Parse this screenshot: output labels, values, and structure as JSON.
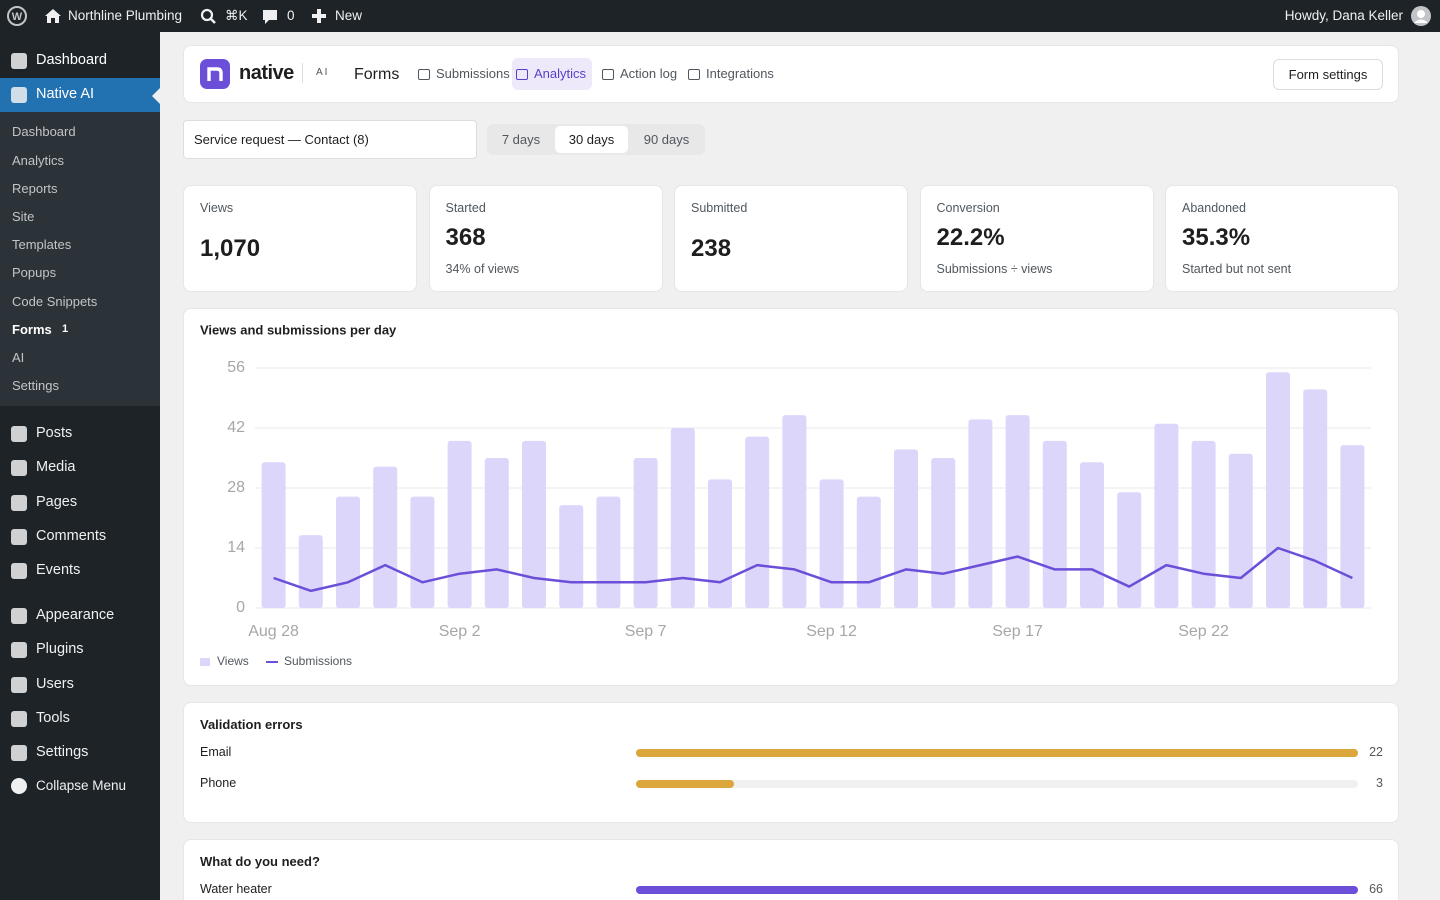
{
  "admin_bar": {
    "site_name": "Northline Plumbing",
    "search_shortcut": "⌘K",
    "comment_count": "0",
    "new": "New",
    "greeting": "Howdy, Dana Keller"
  },
  "sidebar": {
    "top": [
      "Dashboard",
      "Native AI"
    ],
    "top_current": 1,
    "submenu": [
      "Dashboard",
      "Analytics",
      "Reports",
      "Site",
      "Templates",
      "Popups",
      "Code Snippets",
      "Forms",
      "AI",
      "Settings"
    ],
    "submenu_current": 7,
    "submenu_badge": "1",
    "menu": [
      "Posts",
      "Media",
      "Pages",
      "Comments",
      "Events",
      "Appearance",
      "Plugins",
      "Users",
      "Tools",
      "Settings"
    ],
    "collapse": "Collapse Menu"
  },
  "header": {
    "brand": "native",
    "brand_tag": "AI",
    "section": "Forms",
    "tabs": [
      "Submissions",
      "Analytics",
      "Action log",
      "Integrations"
    ],
    "active_tab": 1,
    "button": "Form settings"
  },
  "filters": {
    "form": "Service request — Contact (8)",
    "ranges": [
      "7 days",
      "30 days",
      "90 days"
    ],
    "active_range": 1
  },
  "stats": [
    {
      "label": "Views",
      "value": "1,070"
    },
    {
      "label": "Started",
      "value": "368",
      "note": "34% of views"
    },
    {
      "label": "Submitted",
      "value": "238"
    },
    {
      "label": "Conversion",
      "value": "22.2%",
      "note": "Submissions ÷ views"
    },
    {
      "label": "Abandoned",
      "value": "35.3%",
      "note": "Started but not sent"
    }
  ],
  "chart_data": [
    {
      "type": "combo",
      "title": "Views and submissions per day",
      "categories": [
        "Aug 28",
        null,
        null,
        null,
        null,
        "Sep 2",
        null,
        null,
        null,
        null,
        "Sep 7",
        null,
        null,
        null,
        null,
        "Sep 12",
        null,
        null,
        null,
        null,
        "Sep 17",
        null,
        null,
        null,
        null,
        "Sep 22",
        null,
        null,
        null,
        null
      ],
      "series": [
        {
          "name": "Views",
          "type": "bar",
          "color": "#ddd6fb",
          "values": [
            34,
            17,
            26,
            33,
            26,
            39,
            35,
            39,
            24,
            26,
            35,
            42,
            30,
            40,
            45,
            30,
            26,
            37,
            35,
            44,
            45,
            39,
            34,
            27,
            43,
            39,
            36,
            55,
            51,
            38
          ]
        },
        {
          "name": "Submissions",
          "type": "line",
          "color": "#6b4fd8",
          "values": [
            7,
            4,
            6,
            10,
            6,
            8,
            9,
            7,
            6,
            6,
            6,
            7,
            6,
            10,
            9,
            6,
            6,
            9,
            8,
            10,
            12,
            9,
            9,
            5,
            10,
            8,
            7,
            14,
            11,
            7
          ]
        }
      ],
      "ylim": [
        0,
        56
      ],
      "yticks": [
        0,
        14,
        28,
        42,
        56
      ],
      "grid": true,
      "legend": "bottom-left"
    },
    {
      "type": "hbar",
      "title": "Validation errors",
      "categories": [
        "Email",
        "Phone"
      ],
      "values": [
        22,
        3
      ],
      "color": "#dba73a"
    },
    {
      "type": "hbar",
      "title": "What do you need?",
      "categories": [
        "Water heater"
      ],
      "values": [
        66
      ],
      "color": "#6b4fd8"
    }
  ]
}
